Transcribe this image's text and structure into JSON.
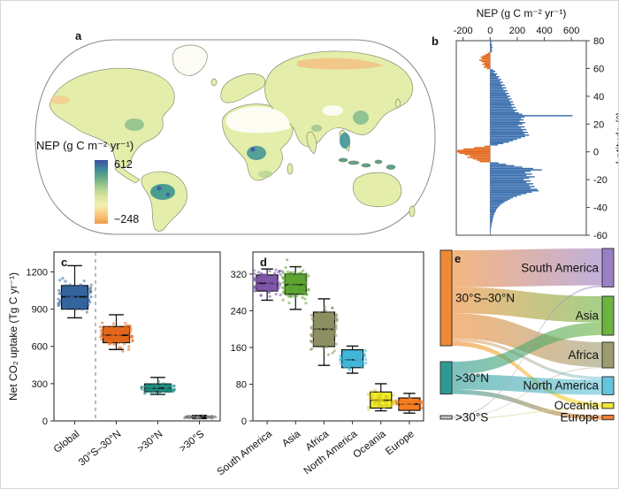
{
  "figure_labels": {
    "a": "a",
    "b": "b",
    "c": "c",
    "d": "d",
    "e": "e"
  },
  "panel_a": {
    "legend_title": "NEP (g C m⁻² yr⁻¹)",
    "colorbar": {
      "max_label": "612",
      "min_label": "−248",
      "colors_top_to_bottom": [
        "#3c4fa5",
        "#3d8a9a",
        "#6aad85",
        "#a9cd90",
        "#dbe59e",
        "#f2efb2",
        "#f8c87c",
        "#f2994b"
      ]
    }
  },
  "chart_data": [
    {
      "id": "b",
      "type": "bar",
      "orientation": "horizontal",
      "title": "NEP (g C m⁻² yr⁻¹)",
      "xticks": [
        -200,
        0,
        200,
        400,
        600
      ],
      "xlim": [
        -250,
        710
      ],
      "ylabel": "Latitude (°)",
      "yticks": [
        80,
        60,
        40,
        20,
        0,
        -20,
        -40,
        -60
      ],
      "ylim": [
        80,
        -60
      ],
      "positive_color": "#3a6fae",
      "negative_color": "#e2671c",
      "lat_start": 80,
      "lat_step": -1,
      "values": [
        6,
        10,
        8,
        14,
        12,
        18,
        10,
        16,
        12,
        -18,
        -35,
        -55,
        -70,
        -60,
        -80,
        -65,
        -45,
        -58,
        -38,
        -48,
        -25,
        22,
        38,
        28,
        52,
        44,
        68,
        58,
        82,
        72,
        95,
        78,
        108,
        88,
        118,
        98,
        128,
        112,
        138,
        122,
        148,
        132,
        158,
        142,
        168,
        152,
        178,
        158,
        188,
        168,
        198,
        182,
        212,
        238,
        608,
        255,
        228,
        248,
        218,
        258,
        238,
        208,
        255,
        228,
        268,
        242,
        278,
        252,
        288,
        258,
        228,
        198,
        168,
        138,
        98,
        58,
        -42,
        -118,
        -198,
        -242,
        -252,
        -228,
        -188,
        -148,
        -168,
        -128,
        -98,
        -78,
        62,
        118,
        178,
        238,
        318,
        382,
        298,
        258,
        308,
        268,
        328,
        288,
        248,
        298,
        268,
        318,
        288,
        328,
        298,
        348,
        358,
        308,
        268,
        228,
        198,
        168,
        148,
        128,
        108,
        94,
        78,
        68,
        58,
        50,
        44,
        40,
        34,
        30,
        27,
        24,
        21,
        19,
        17,
        14,
        12,
        10,
        8,
        7,
        5,
        4,
        3,
        3,
        2
      ]
    },
    {
      "id": "c",
      "type": "box",
      "ylabel": "Net CO₂ uptake (Tg C yr⁻¹)",
      "yticks": [
        0,
        300,
        600,
        900,
        1200
      ],
      "ylim": [
        0,
        1360
      ],
      "dashed_separator_after": "Global",
      "categories": [
        {
          "label": "Global",
          "color": "#34659f",
          "whisker_low": 830,
          "q1": 900,
          "median": 1000,
          "q3": 1090,
          "whisker_high": 1250,
          "points_min": 790,
          "points_max": 1300,
          "n_points": 95
        },
        {
          "label": "30°S–30°N",
          "color": "#e2671c",
          "whisker_low": 575,
          "q1": 630,
          "median": 690,
          "q3": 760,
          "whisker_high": 855,
          "points_min": 545,
          "points_max": 875,
          "n_points": 95
        },
        {
          "label": ">30°N",
          "color": "#1f8a7f",
          "whisker_low": 213,
          "q1": 235,
          "median": 263,
          "q3": 298,
          "whisker_high": 350,
          "points_min": 205,
          "points_max": 360,
          "n_points": 80
        },
        {
          "label": ">30°S",
          "color": "#111111",
          "point_color": "#888888",
          "whisker_low": 18,
          "q1": 25,
          "median": 31,
          "q3": 38,
          "whisker_high": 45,
          "points_min": 15,
          "points_max": 50,
          "n_points": 40
        }
      ]
    },
    {
      "id": "d",
      "type": "box",
      "ylabel": "",
      "yticks": [
        0,
        80,
        160,
        240,
        320
      ],
      "ylim": [
        0,
        368
      ],
      "categories": [
        {
          "label": "South America",
          "color": "#7e57a8",
          "whisker_low": 263,
          "q1": 283,
          "median": 300,
          "q3": 318,
          "whisker_high": 331,
          "points_min": 245,
          "points_max": 348,
          "n_points": 110
        },
        {
          "label": "Asia",
          "color": "#5da432",
          "whisker_low": 243,
          "q1": 276,
          "median": 297,
          "q3": 320,
          "whisker_high": 336,
          "points_min": 218,
          "points_max": 352,
          "n_points": 110
        },
        {
          "label": "Africa",
          "color": "#8d8f62",
          "whisker_low": 121,
          "q1": 162,
          "median": 200,
          "q3": 237,
          "whisker_high": 266,
          "points_min": 108,
          "points_max": 287,
          "n_points": 130
        },
        {
          "label": "North America",
          "color": "#41b6d9",
          "whisker_low": 104,
          "q1": 116,
          "median": 133,
          "q3": 155,
          "whisker_high": 163,
          "points_min": 97,
          "points_max": 172,
          "n_points": 85
        },
        {
          "label": "Oceania",
          "color": "#f2ef2e",
          "point_color": "#d8c61e",
          "whisker_low": 22,
          "q1": 28,
          "median": 45,
          "q3": 63,
          "whisker_high": 81,
          "points_min": 18,
          "points_max": 86,
          "n_points": 55
        },
        {
          "label": "Europe",
          "color": "#f57d21",
          "whisker_low": 17,
          "q1": 23,
          "median": 37,
          "q3": 50,
          "whisker_high": 60,
          "points_min": 14,
          "points_max": 64,
          "n_points": 55
        }
      ]
    },
    {
      "id": "e",
      "type": "sankey",
      "left_nodes": [
        {
          "id": "30S-30N",
          "label": "30°S–30°N",
          "color": "#ee8a33"
        },
        {
          "id": ">30N",
          "label": ">30°N",
          "color": "#2d9b94"
        },
        {
          "id": ">30S",
          "label": ">30°S",
          "color": "#c4c4c4"
        }
      ],
      "right_nodes": [
        {
          "id": "South America",
          "label": "South America",
          "color": "#9b7fc4"
        },
        {
          "id": "Asia",
          "label": "Asia",
          "color": "#6db33f"
        },
        {
          "id": "Africa",
          "label": "Africa",
          "color": "#9c9c72"
        },
        {
          "id": "North America",
          "label": "North America",
          "color": "#66c5de"
        },
        {
          "id": "Oceania",
          "label": "Oceania",
          "color": "#f1e838"
        },
        {
          "id": "Europe",
          "label": "Europe",
          "color": "#f08030"
        }
      ],
      "flows": [
        {
          "source": "30S-30N",
          "target": "South America",
          "value": 275
        },
        {
          "source": "30S-30N",
          "target": "Asia",
          "value": 195
        },
        {
          "source": "30S-30N",
          "target": "Africa",
          "value": 185
        },
        {
          "source": "30S-30N",
          "target": "North America",
          "value": 22
        },
        {
          "source": "30S-30N",
          "target": "Oceania",
          "value": 34
        },
        {
          "source": ">30N",
          "target": "Asia",
          "value": 95
        },
        {
          "source": ">30N",
          "target": "North America",
          "value": 112
        },
        {
          "source": ">30N",
          "target": "Europe",
          "value": 34
        },
        {
          "source": ">30S",
          "target": "South America",
          "value": 12
        },
        {
          "source": ">30S",
          "target": "Africa",
          "value": 6
        },
        {
          "source": ">30S",
          "target": "Oceania",
          "value": 8
        }
      ]
    }
  ]
}
